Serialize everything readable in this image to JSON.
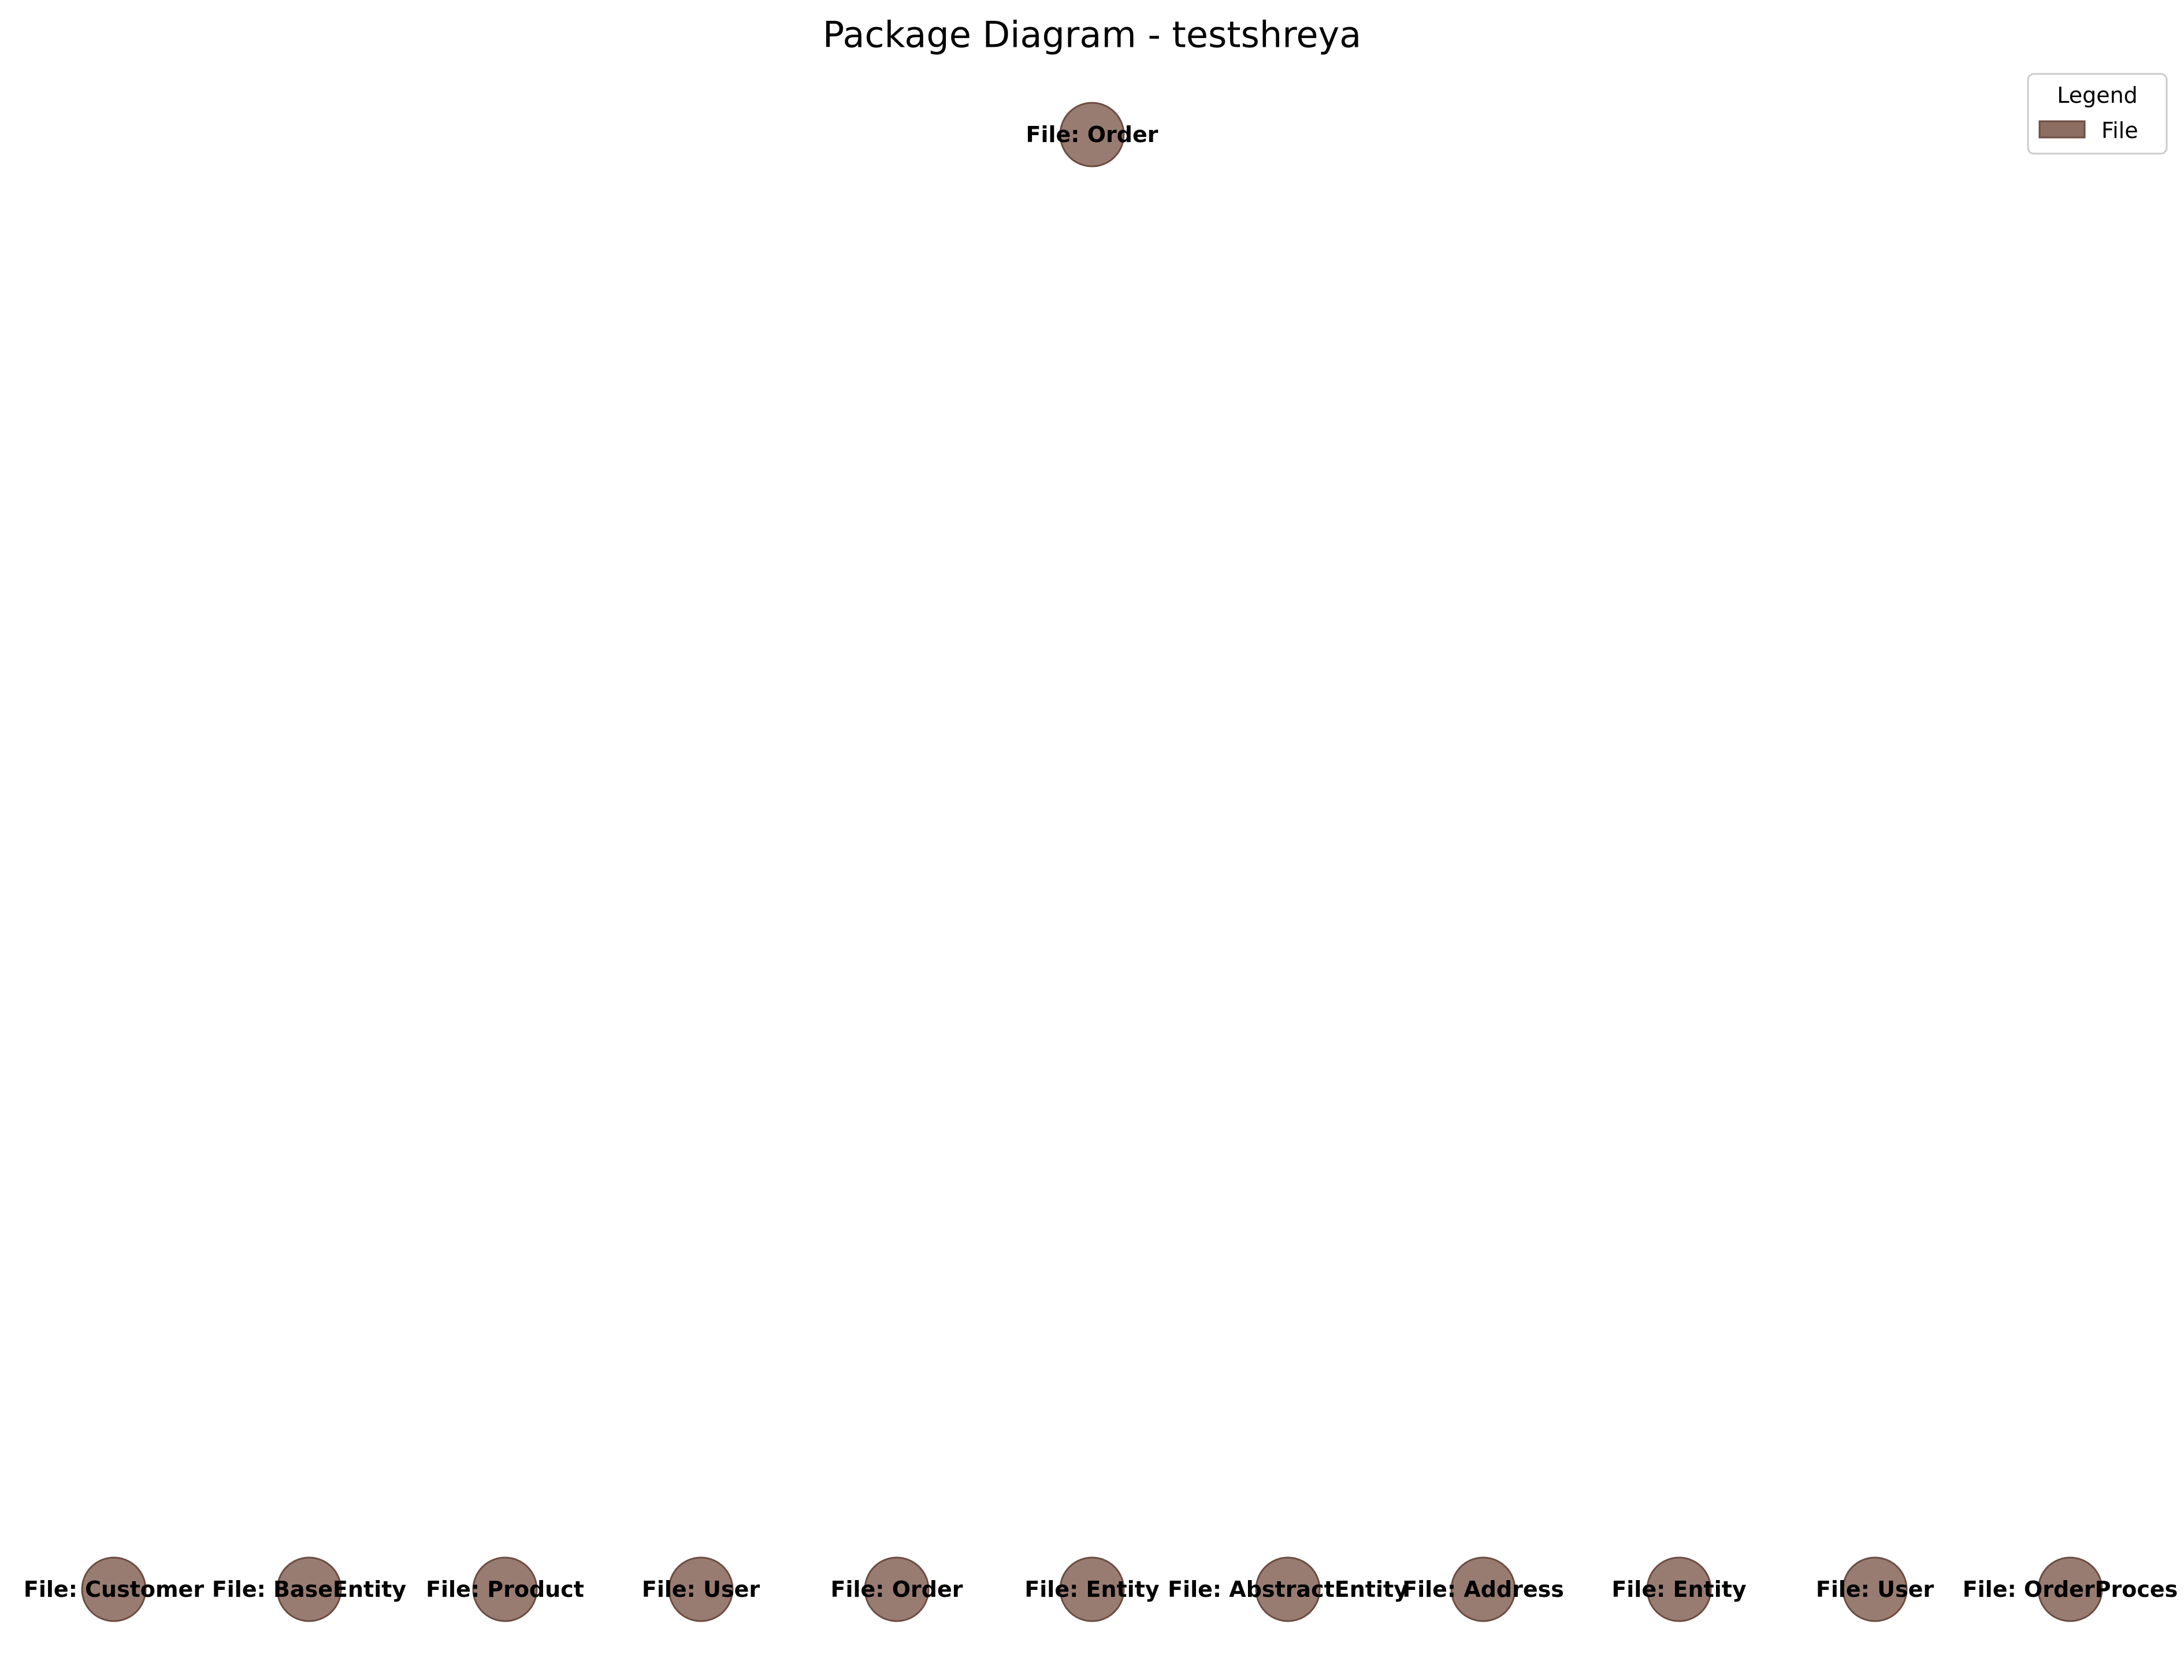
{
  "title": "Package Diagram - testshreya",
  "legend": {
    "title": "Legend",
    "items": [
      {
        "label": "File",
        "color": "#8d6e63"
      }
    ]
  },
  "node_color": "#8d6e63",
  "nodes": {
    "top": {
      "label": "File: Order"
    },
    "bottom": [
      {
        "label": "File: Customer"
      },
      {
        "label": "File: BaseEntity"
      },
      {
        "label": "File: Product"
      },
      {
        "label": "File: User"
      },
      {
        "label": "File: Order"
      },
      {
        "label": "File: Entity"
      },
      {
        "label": "File: AbstractEntity"
      },
      {
        "label": "File: Address"
      },
      {
        "label": "File: Entity"
      },
      {
        "label": "File: User"
      },
      {
        "label": "File: OrderProces"
      }
    ]
  }
}
